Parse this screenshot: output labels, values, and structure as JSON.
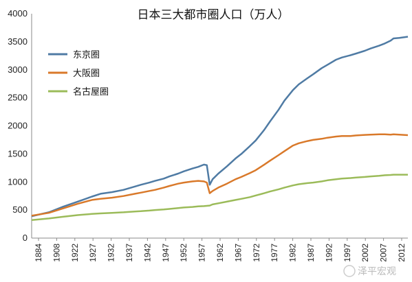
{
  "chart_data": {
    "type": "line",
    "title": "日本三大都市圈人口（万人）",
    "xlabel": "",
    "ylabel": "",
    "ylim": [
      0,
      4000
    ],
    "yticks": [
      0,
      500,
      1000,
      1500,
      2000,
      2500,
      3000,
      3500,
      4000
    ],
    "xlim": [
      1884,
      2015
    ],
    "xticks": [
      "1884",
      "1908",
      "1922",
      "1927",
      "1932",
      "1937",
      "1942",
      "1947",
      "1952",
      "1957",
      "1962",
      "1967",
      "1972",
      "1977",
      "1982",
      "1987",
      "1992",
      "1997",
      "2002",
      "2007",
      "2012"
    ],
    "grid": false,
    "legend": "top-left",
    "series": [
      {
        "name": "东京圈",
        "color": "#4f7ba4",
        "points": [
          [
            1884,
            390
          ],
          [
            1890,
            460
          ],
          [
            1895,
            560
          ],
          [
            1900,
            650
          ],
          [
            1905,
            740
          ],
          [
            1908,
            790
          ],
          [
            1912,
            820
          ],
          [
            1916,
            860
          ],
          [
            1920,
            920
          ],
          [
            1922,
            950
          ],
          [
            1925,
            990
          ],
          [
            1927,
            1020
          ],
          [
            1930,
            1060
          ],
          [
            1932,
            1100
          ],
          [
            1935,
            1150
          ],
          [
            1937,
            1190
          ],
          [
            1940,
            1240
          ],
          [
            1942,
            1270
          ],
          [
            1944,
            1310
          ],
          [
            1945,
            1300
          ],
          [
            1946,
            950
          ],
          [
            1947,
            1050
          ],
          [
            1949,
            1150
          ],
          [
            1952,
            1280
          ],
          [
            1955,
            1420
          ],
          [
            1957,
            1500
          ],
          [
            1960,
            1640
          ],
          [
            1962,
            1740
          ],
          [
            1965,
            1930
          ],
          [
            1967,
            2080
          ],
          [
            1970,
            2290
          ],
          [
            1972,
            2450
          ],
          [
            1975,
            2640
          ],
          [
            1977,
            2740
          ],
          [
            1980,
            2850
          ],
          [
            1982,
            2920
          ],
          [
            1985,
            3030
          ],
          [
            1987,
            3090
          ],
          [
            1990,
            3180
          ],
          [
            1992,
            3220
          ],
          [
            1995,
            3260
          ],
          [
            1997,
            3290
          ],
          [
            2000,
            3340
          ],
          [
            2002,
            3380
          ],
          [
            2005,
            3430
          ],
          [
            2007,
            3470
          ],
          [
            2009,
            3520
          ],
          [
            2010,
            3560
          ],
          [
            2012,
            3570
          ],
          [
            2015,
            3590
          ]
        ]
      },
      {
        "name": "大阪圈",
        "color": "#d9792a",
        "points": [
          [
            1884,
            400
          ],
          [
            1890,
            450
          ],
          [
            1895,
            530
          ],
          [
            1900,
            610
          ],
          [
            1905,
            680
          ],
          [
            1908,
            700
          ],
          [
            1912,
            720
          ],
          [
            1916,
            750
          ],
          [
            1920,
            790
          ],
          [
            1922,
            810
          ],
          [
            1925,
            840
          ],
          [
            1927,
            860
          ],
          [
            1930,
            900
          ],
          [
            1932,
            930
          ],
          [
            1935,
            970
          ],
          [
            1937,
            990
          ],
          [
            1940,
            1010
          ],
          [
            1942,
            1020
          ],
          [
            1944,
            1010
          ],
          [
            1945,
            990
          ],
          [
            1946,
            800
          ],
          [
            1947,
            840
          ],
          [
            1949,
            900
          ],
          [
            1952,
            970
          ],
          [
            1955,
            1050
          ],
          [
            1957,
            1090
          ],
          [
            1960,
            1160
          ],
          [
            1962,
            1210
          ],
          [
            1965,
            1310
          ],
          [
            1967,
            1380
          ],
          [
            1970,
            1480
          ],
          [
            1972,
            1550
          ],
          [
            1975,
            1650
          ],
          [
            1977,
            1690
          ],
          [
            1980,
            1730
          ],
          [
            1982,
            1750
          ],
          [
            1985,
            1770
          ],
          [
            1987,
            1790
          ],
          [
            1990,
            1810
          ],
          [
            1992,
            1820
          ],
          [
            1995,
            1820
          ],
          [
            1997,
            1830
          ],
          [
            2000,
            1840
          ],
          [
            2002,
            1845
          ],
          [
            2005,
            1850
          ],
          [
            2007,
            1850
          ],
          [
            2009,
            1845
          ],
          [
            2010,
            1850
          ],
          [
            2012,
            1845
          ],
          [
            2015,
            1835
          ]
        ]
      },
      {
        "name": "名古屋圈",
        "color": "#9bbb59",
        "points": [
          [
            1884,
            320
          ],
          [
            1890,
            350
          ],
          [
            1895,
            380
          ],
          [
            1900,
            410
          ],
          [
            1905,
            430
          ],
          [
            1908,
            440
          ],
          [
            1912,
            450
          ],
          [
            1916,
            460
          ],
          [
            1920,
            475
          ],
          [
            1922,
            480
          ],
          [
            1925,
            490
          ],
          [
            1927,
            500
          ],
          [
            1930,
            510
          ],
          [
            1932,
            520
          ],
          [
            1935,
            535
          ],
          [
            1937,
            545
          ],
          [
            1940,
            555
          ],
          [
            1942,
            565
          ],
          [
            1944,
            570
          ],
          [
            1945,
            575
          ],
          [
            1946,
            580
          ],
          [
            1947,
            600
          ],
          [
            1949,
            620
          ],
          [
            1952,
            650
          ],
          [
            1955,
            680
          ],
          [
            1957,
            700
          ],
          [
            1960,
            730
          ],
          [
            1962,
            760
          ],
          [
            1965,
            800
          ],
          [
            1967,
            830
          ],
          [
            1970,
            870
          ],
          [
            1972,
            900
          ],
          [
            1975,
            940
          ],
          [
            1977,
            960
          ],
          [
            1980,
            980
          ],
          [
            1982,
            990
          ],
          [
            1985,
            1010
          ],
          [
            1987,
            1030
          ],
          [
            1990,
            1050
          ],
          [
            1992,
            1060
          ],
          [
            1995,
            1070
          ],
          [
            1997,
            1080
          ],
          [
            2000,
            1090
          ],
          [
            2002,
            1100
          ],
          [
            2005,
            1110
          ],
          [
            2007,
            1120
          ],
          [
            2009,
            1125
          ],
          [
            2010,
            1130
          ],
          [
            2012,
            1130
          ],
          [
            2015,
            1130
          ]
        ]
      }
    ]
  },
  "watermark": "泽平宏观"
}
